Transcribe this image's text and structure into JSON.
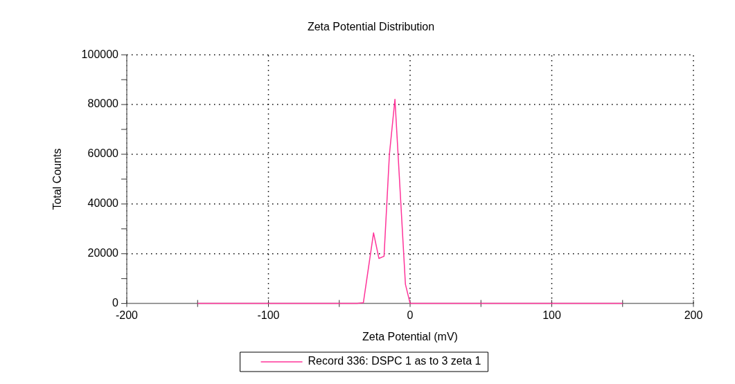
{
  "chart_data": {
    "type": "line",
    "title": "Zeta Potential Distribution",
    "xlabel": "Zeta Potential (mV)",
    "ylabel": "Total Counts",
    "series": [
      {
        "name": "Record 336: DSPC 1 as to 3 zeta 1",
        "color": "#ff3399",
        "x": [
          -150,
          -37.3,
          -33,
          -25.8,
          -22,
          -18.4,
          -14.6,
          -10.7,
          -3.3,
          0,
          150
        ],
        "values": [
          0,
          0,
          300,
          28400,
          18100,
          19000,
          60000,
          82100,
          7700,
          0,
          0
        ]
      }
    ],
    "xlim": [
      -200,
      200
    ],
    "xticks": [
      -200,
      {
        "value": -150,
        "label": null
      },
      -100,
      {
        "value": -50,
        "label": null
      },
      0,
      {
        "value": 50,
        "label": null
      },
      100,
      {
        "value": 150,
        "label": null
      },
      200
    ],
    "ylim": [
      0,
      100000
    ],
    "yticks": [
      0,
      {
        "value": 10000,
        "label": null
      },
      20000,
      {
        "value": 30000,
        "label": null
      },
      40000,
      {
        "value": 50000,
        "label": null
      },
      60000,
      {
        "value": 70000,
        "label": null
      },
      80000,
      {
        "value": 90000,
        "label": null
      },
      100000
    ],
    "grid": true,
    "legend": "bottom",
    "marker": "none",
    "line_style": "solid"
  }
}
